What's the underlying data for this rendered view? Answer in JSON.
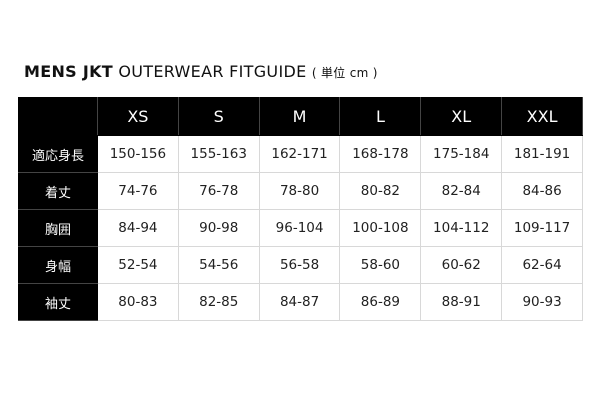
{
  "title": {
    "bold": "MENS JKT",
    "rest": "OUTERWEAR FITGUIDE",
    "unit": "( 単位 cm )"
  },
  "table": {
    "sizes": [
      "XS",
      "S",
      "M",
      "L",
      "XL",
      "XXL"
    ],
    "rows": [
      {
        "label": "適応身長",
        "values": [
          "150-156",
          "155-163",
          "162-171",
          "168-178",
          "175-184",
          "181-191"
        ]
      },
      {
        "label": "着丈",
        "values": [
          "74-76",
          "76-78",
          "78-80",
          "80-82",
          "82-84",
          "84-86"
        ]
      },
      {
        "label": "胸囲",
        "values": [
          "84-94",
          "90-98",
          "96-104",
          "100-108",
          "104-112",
          "109-117"
        ]
      },
      {
        "label": "身幅",
        "values": [
          "52-54",
          "54-56",
          "56-58",
          "58-60",
          "60-62",
          "62-64"
        ]
      },
      {
        "label": "袖丈",
        "values": [
          "80-83",
          "82-85",
          "84-87",
          "86-89",
          "88-91",
          "90-93"
        ]
      }
    ]
  }
}
